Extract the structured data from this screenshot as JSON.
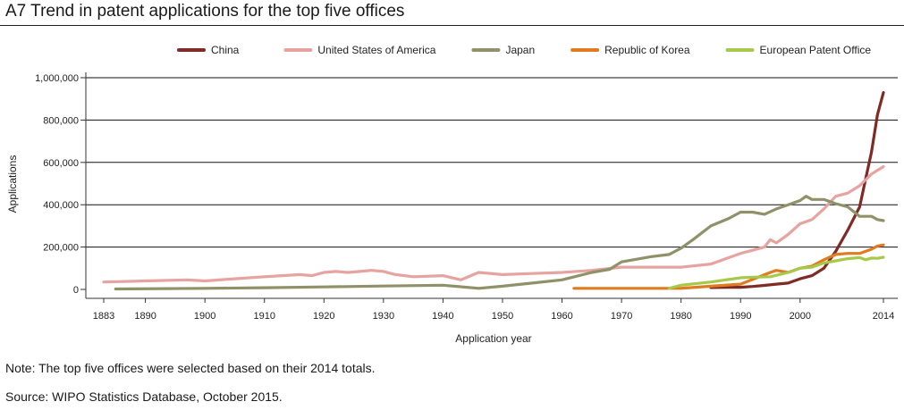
{
  "title": "A7 Trend in patent applications for the top five offices",
  "note": "Note: The top five offices were selected based on their 2014 totals.",
  "source": "Source: WIPO Statistics Database, October 2015.",
  "chart_data": {
    "type": "line",
    "title": "A7 Trend in patent applications for the top five offices",
    "xlabel": "Application year",
    "ylabel": "Applications",
    "xlim": [
      1883,
      2014
    ],
    "ylim": [
      0,
      1000000
    ],
    "x_ticks": [
      1883,
      1890,
      1900,
      1910,
      1920,
      1930,
      1940,
      1950,
      1960,
      1970,
      1980,
      1990,
      2000,
      2014
    ],
    "y_ticks": [
      0,
      200000,
      400000,
      600000,
      800000,
      1000000
    ],
    "y_tick_labels": [
      "0",
      "200,000",
      "400,000",
      "600,000",
      "800,000",
      "1,000,000"
    ],
    "grid": "horizontal",
    "legend_position": "top",
    "series": [
      {
        "name": "China",
        "color": "#7f2a24",
        "x": [
          1985,
          1988,
          1990,
          1992,
          1994,
          1996,
          1998,
          2000,
          2002,
          2004,
          2006,
          2008,
          2010,
          2011,
          2012,
          2013,
          2014
        ],
        "values": [
          9000,
          10000,
          10000,
          14000,
          19000,
          25000,
          30000,
          50000,
          65000,
          100000,
          180000,
          280000,
          390000,
          520000,
          650000,
          825000,
          930000
        ]
      },
      {
        "name": "United States of America",
        "color": "#e6a3a0",
        "x": [
          1883,
          1890,
          1897,
          1900,
          1905,
          1910,
          1916,
          1918,
          1920,
          1922,
          1924,
          1926,
          1928,
          1930,
          1932,
          1935,
          1940,
          1943,
          1946,
          1950,
          1955,
          1960,
          1965,
          1970,
          1975,
          1980,
          1985,
          1990,
          1992,
          1994,
          1995,
          1996,
          1998,
          2000,
          2002,
          2004,
          2006,
          2008,
          2010,
          2012,
          2014
        ],
        "values": [
          35000,
          40000,
          45000,
          40000,
          50000,
          60000,
          70000,
          65000,
          80000,
          85000,
          80000,
          85000,
          90000,
          85000,
          70000,
          60000,
          65000,
          45000,
          80000,
          70000,
          75000,
          80000,
          90000,
          105000,
          105000,
          105000,
          120000,
          170000,
          185000,
          200000,
          235000,
          220000,
          260000,
          310000,
          330000,
          380000,
          440000,
          455000,
          490000,
          545000,
          580000
        ]
      },
      {
        "name": "Japan",
        "color": "#8f9268",
        "x": [
          1885,
          1900,
          1910,
          1920,
          1930,
          1940,
          1944,
          1946,
          1950,
          1955,
          1960,
          1965,
          1968,
          1970,
          1972,
          1975,
          1978,
          1980,
          1982,
          1985,
          1988,
          1990,
          1992,
          1994,
          1996,
          1998,
          2000,
          2001,
          2002,
          2004,
          2006,
          2008,
          2010,
          2012,
          2013,
          2014
        ],
        "values": [
          2000,
          5000,
          8000,
          12000,
          16000,
          20000,
          10000,
          5000,
          15000,
          30000,
          45000,
          80000,
          95000,
          130000,
          140000,
          155000,
          165000,
          195000,
          235000,
          300000,
          335000,
          365000,
          365000,
          355000,
          380000,
          400000,
          420000,
          440000,
          425000,
          425000,
          405000,
          390000,
          345000,
          345000,
          330000,
          325000
        ]
      },
      {
        "name": "Republic of Korea",
        "color": "#e07b1f",
        "x": [
          1962,
          1970,
          1980,
          1985,
          1990,
          1995,
          1996,
          1998,
          2000,
          2002,
          2004,
          2006,
          2008,
          2010,
          2012,
          2013,
          2014
        ],
        "values": [
          5000,
          5000,
          5000,
          15000,
          25000,
          80000,
          90000,
          80000,
          100000,
          110000,
          140000,
          165000,
          170000,
          170000,
          190000,
          205000,
          210000
        ]
      },
      {
        "name": "European Patent Office",
        "color": "#a6c94a",
        "x": [
          1978,
          1980,
          1985,
          1990,
          1992,
          1995,
          1998,
          2000,
          2002,
          2004,
          2006,
          2008,
          2010,
          2011,
          2012,
          2013,
          2014
        ],
        "values": [
          5000,
          20000,
          35000,
          55000,
          58000,
          60000,
          80000,
          100000,
          105000,
          125000,
          135000,
          145000,
          150000,
          140000,
          148000,
          147000,
          152000
        ]
      }
    ]
  }
}
